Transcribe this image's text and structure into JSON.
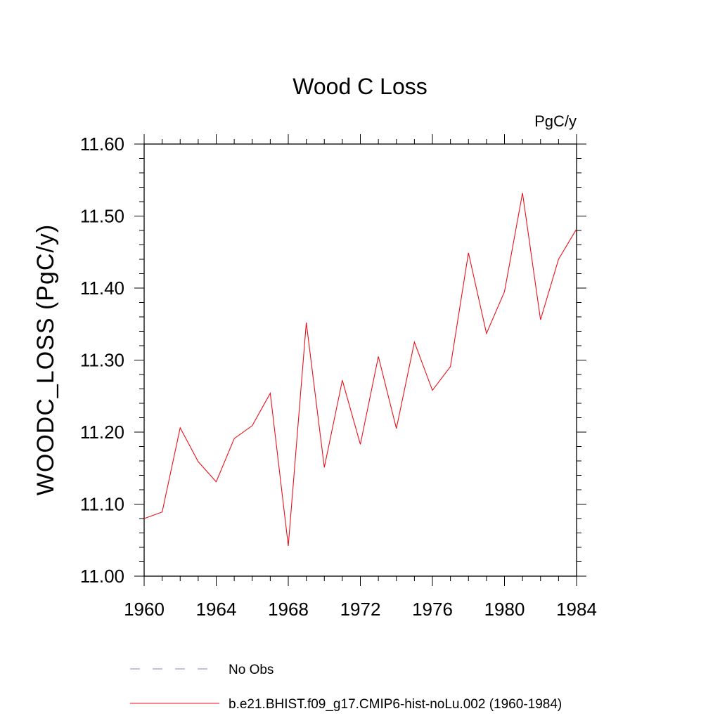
{
  "chart_data": {
    "type": "line",
    "title": "Wood C Loss",
    "units_label": "PgC/y",
    "ylabel": "WOODC_LOSS  (PgC/y)",
    "xlabel": "",
    "xlim": [
      1960,
      1984
    ],
    "ylim": [
      11.0,
      11.6
    ],
    "x_ticks": [
      1960,
      1964,
      1968,
      1972,
      1976,
      1980,
      1984
    ],
    "x_tick_labels": [
      "1960",
      "1964",
      "1968",
      "1972",
      "1976",
      "1980",
      "1984"
    ],
    "y_ticks": [
      11.0,
      11.1,
      11.2,
      11.3,
      11.4,
      11.5,
      11.6
    ],
    "y_tick_labels": [
      "11.00",
      "11.10",
      "11.20",
      "11.30",
      "11.40",
      "11.50",
      "11.60"
    ],
    "grid": false,
    "legend_position": "bottom",
    "legend": [
      {
        "label": "No Obs",
        "color": "#8080c0",
        "style": "dashed"
      },
      {
        "label": "b.e21.BHIST.f09_g17.CMIP6-hist-noLu.002 (1960-1984)",
        "color": "#e8101a",
        "style": "solid"
      }
    ],
    "series": [
      {
        "name": "b.e21.BHIST.f09_g17.CMIP6-hist-noLu.002 (1960-1984)",
        "color": "#e8101a",
        "x": [
          1960,
          1961,
          1962,
          1963,
          1964,
          1965,
          1966,
          1967,
          1968,
          1969,
          1970,
          1971,
          1972,
          1973,
          1974,
          1975,
          1976,
          1977,
          1978,
          1979,
          1980,
          1981,
          1982,
          1983,
          1984
        ],
        "values": [
          11.08,
          11.089,
          11.206,
          11.159,
          11.131,
          11.191,
          11.209,
          11.254,
          11.042,
          11.352,
          11.151,
          11.272,
          11.183,
          11.305,
          11.205,
          11.325,
          11.258,
          11.291,
          11.449,
          11.337,
          11.395,
          11.532,
          11.356,
          11.44,
          11.482
        ]
      }
    ]
  }
}
